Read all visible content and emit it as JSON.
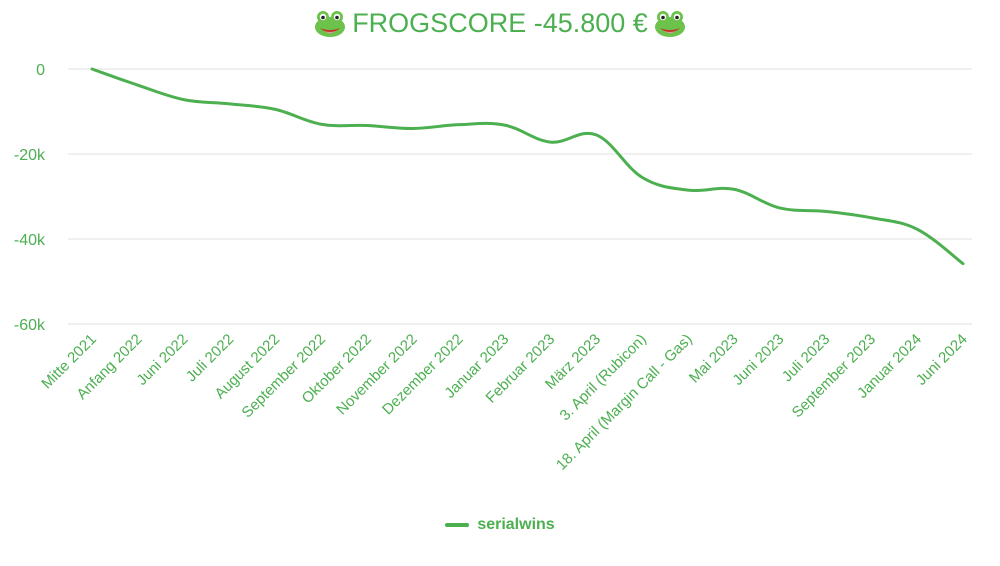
{
  "chart_data": {
    "type": "line",
    "title": "FROGSCORE -45.800 €",
    "title_icon": "frog-face-icon",
    "categories": [
      "Mitte 2021",
      "Anfang 2022",
      "Juni 2022",
      "Juli 2022",
      "August 2022",
      "September 2022",
      "Oktober 2022",
      "November 2022",
      "Dezember 2022",
      "Januar 2023",
      "Februar 2023",
      "März 2023",
      "3. April (Rubicon)",
      "18. April (Margin Call - Gas)",
      "Mai 2023",
      "Juni 2023",
      "Juli 2023",
      "September 2023",
      "Januar 2024",
      "Juni 2024"
    ],
    "series": [
      {
        "name": "serialwins",
        "color": "#4caf50",
        "values": [
          0,
          -3800,
          -7200,
          -8200,
          -9500,
          -13000,
          -13300,
          -14000,
          -13100,
          -13200,
          -17200,
          -15500,
          -25500,
          -28500,
          -28300,
          -32700,
          -33500,
          -35000,
          -37700,
          -45800
        ]
      }
    ],
    "ylim": [
      -60000,
      0
    ],
    "yticks": [
      {
        "value": 0,
        "label": "0"
      },
      {
        "value": -20000,
        "label": "-20k"
      },
      {
        "value": -40000,
        "label": "-40k"
      },
      {
        "value": -60000,
        "label": "-60k"
      }
    ],
    "grid": true,
    "legend_position": "bottom-center",
    "xlabel": "",
    "ylabel": ""
  }
}
